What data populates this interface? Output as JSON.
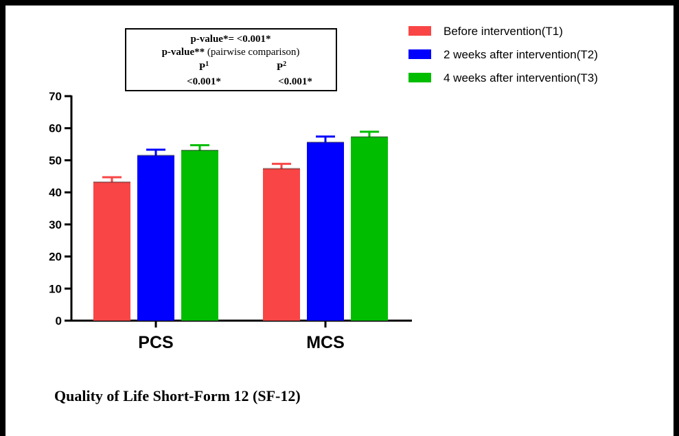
{
  "chart_data": {
    "type": "bar",
    "title": "Quality of Life Short-Form 12 (SF-12)",
    "categories": [
      "PCS",
      "MCS"
    ],
    "ylim": [
      0,
      70
    ],
    "yticks": [
      "0",
      "10",
      "20",
      "30",
      "40",
      "50",
      "60",
      "70"
    ],
    "series": [
      {
        "name": "Before intervention(T1)",
        "color": "#f94545",
        "values": [
          43.2,
          47.4
        ],
        "errors": [
          1.5,
          1.5
        ]
      },
      {
        "name": "2 weeks after intervention(T2)",
        "color": "#0000ff",
        "values": [
          51.5,
          55.6
        ],
        "errors": [
          1.8,
          1.8
        ]
      },
      {
        "name": "4 weeks after intervention(T3)",
        "color": "#00bd00",
        "values": [
          53.1,
          57.3
        ],
        "errors": [
          1.6,
          1.6
        ]
      }
    ],
    "legend_position": "top-right",
    "annotation": {
      "line1_bold": "p-value*= <0.001*",
      "line2_bold": "p-value**",
      "line2_rest": " (pairwise comparison)",
      "p1_label": "P",
      "p1_sup": "1",
      "p2_label": "P",
      "p2_sup": "2",
      "p1_value": "<0.001*",
      "p2_value": "<0.001*"
    }
  }
}
